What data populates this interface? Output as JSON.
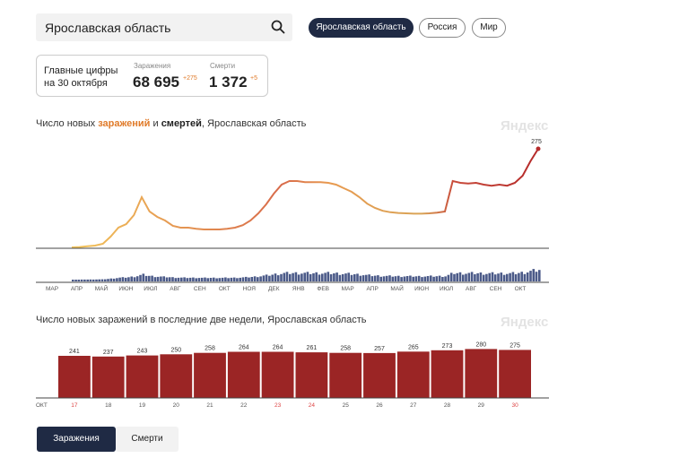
{
  "search": {
    "value": "Ярославская область"
  },
  "regions": [
    "Ярославская область",
    "Россия",
    "Мир"
  ],
  "key_figures": {
    "label_line1": "Главные цифры",
    "label_line2": "на 30 октября",
    "infections": {
      "caption": "Заражения",
      "value": "68 695",
      "delta": "+275"
    },
    "deaths": {
      "caption": "Смерти",
      "value": "1 372",
      "delta": "+5"
    }
  },
  "chart1": {
    "title_prefix": "Число новых ",
    "title_infections": "заражений",
    "title_and": " и ",
    "title_deaths": "смертей",
    "title_suffix": ", Ярославская область",
    "brand": "Яндекс",
    "end_label": "275",
    "month_labels": [
      "МАР",
      "АПР",
      "МАЙ",
      "ИЮН",
      "ИЮЛ",
      "АВГ",
      "СЕН",
      "ОКТ",
      "НОЯ",
      "ДЕК",
      "ЯНВ",
      "ФЕВ",
      "МАР",
      "АПР",
      "МАЙ",
      "ИЮН",
      "ИЮЛ",
      "АВГ",
      "СЕН",
      "ОКТ"
    ]
  },
  "chart_data": [
    {
      "type": "line",
      "series": [
        {
          "values": [
            0,
            1,
            3,
            5,
            10,
            30,
            55,
            65,
            90,
            140,
            100,
            85,
            75,
            60,
            55,
            55,
            52,
            50,
            50,
            50,
            52,
            55,
            62,
            75,
            95,
            120,
            150,
            175,
            185,
            185,
            182,
            182,
            182,
            180,
            175,
            165,
            155,
            140,
            122,
            110,
            102,
            98,
            96,
            95,
            94,
            94,
            95,
            97,
            100,
            185,
            180,
            178,
            180,
            175,
            172,
            175,
            172,
            180,
            200,
            240,
            275
          ]
        }
      ],
      "brand": "Яндекс",
      "end_label": "275",
      "colors": {
        "early": "#f2c55a",
        "late": "#b52a2a"
      }
    },
    {
      "type": "bar",
      "title": "Число новых заражений в последние две недели, Ярославская область",
      "categories": [
        "17",
        "18",
        "19",
        "20",
        "21",
        "22",
        "23",
        "24",
        "25",
        "26",
        "27",
        "28",
        "29",
        "30"
      ],
      "values": [
        241,
        237,
        243,
        250,
        258,
        264,
        264,
        261,
        258,
        257,
        265,
        273,
        280,
        275
      ],
      "month_label": "ОКТ",
      "weekend_indices": [
        0,
        6,
        7,
        13
      ],
      "color": "#9b2525"
    }
  ],
  "chart2": {
    "title": "Число новых заражений в последние две недели, Ярославская область",
    "brand": "Яндекс"
  },
  "tabs": [
    "Заражения",
    "Смерти"
  ]
}
